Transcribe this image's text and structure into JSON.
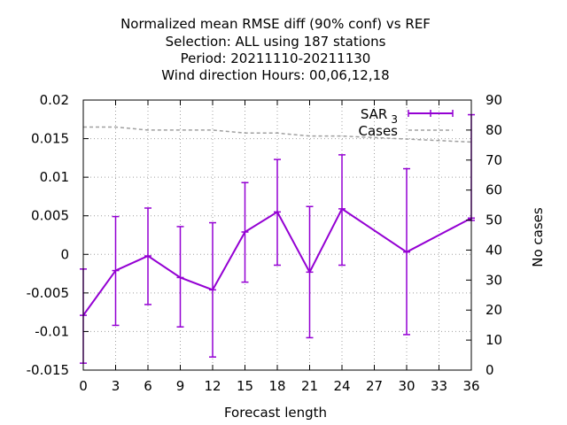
{
  "chart_data": {
    "type": "line",
    "title_lines": [
      "Normalized mean RMSE diff (90% conf) vs REF",
      "Selection: ALL using   187 stations",
      "Period: 20211110-20211130",
      "Wind direction   Hours:  00,06,12,18"
    ],
    "xlabel": "Forecast length",
    "ylabel": "",
    "y2label": "No cases",
    "xlim": [
      0,
      36
    ],
    "ylim": [
      -0.015,
      0.02
    ],
    "y2lim": [
      0,
      90
    ],
    "x_ticks": [
      "0",
      "3",
      "6",
      "9",
      "12",
      "15",
      "18",
      "21",
      "24",
      "27",
      "30",
      "33",
      "36"
    ],
    "y_ticks": [
      "-0.015",
      "-0.01",
      "-0.005",
      "0",
      "0.005",
      "0.01",
      "0.015",
      "0.02"
    ],
    "y2_ticks": [
      "0",
      "10",
      "20",
      "30",
      "40",
      "50",
      "60",
      "70",
      "80",
      "90"
    ],
    "grid": true,
    "legend_position": "top-right",
    "series": [
      {
        "name": "SAR",
        "name_subscript": "3",
        "color": "#9400d3",
        "x": [
          0,
          3,
          6,
          9,
          12,
          15,
          18,
          21,
          24,
          30,
          36
        ],
        "y": [
          -0.0079,
          -0.0021,
          -0.0002,
          -0.003,
          -0.0046,
          0.0029,
          0.0055,
          -0.0023,
          0.0059,
          0.0003,
          0.0047
        ],
        "err_low": [
          -0.0141,
          -0.0092,
          -0.0065,
          -0.0094,
          -0.0133,
          -0.0036,
          -0.0014,
          -0.0108,
          -0.0014,
          -0.0104,
          0.0044
        ],
        "err_high": [
          -0.0019,
          0.0049,
          0.006,
          0.0036,
          0.0041,
          0.0093,
          0.0123,
          0.0062,
          0.0129,
          0.0111,
          0.0181
        ]
      },
      {
        "name": "Cases",
        "color": "#a0a0a0",
        "axis": "y2",
        "x": [
          0,
          3,
          6,
          9,
          12,
          15,
          18,
          21,
          24,
          30,
          36
        ],
        "y": [
          81,
          81,
          80,
          80,
          80,
          79,
          79,
          78,
          78,
          77,
          76
        ]
      }
    ]
  }
}
